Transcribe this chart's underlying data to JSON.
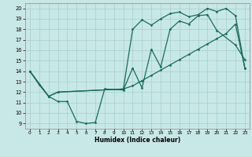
{
  "xlabel": "Humidex (Indice chaleur)",
  "bg_color": "#c8e8e8",
  "grid_color": "#a8cccc",
  "line_color": "#1a6b5a",
  "xlim": [
    -0.5,
    23.5
  ],
  "ylim": [
    8.5,
    20.5
  ],
  "xticks": [
    0,
    1,
    2,
    3,
    4,
    5,
    6,
    7,
    8,
    9,
    10,
    11,
    12,
    13,
    14,
    15,
    16,
    17,
    18,
    19,
    20,
    21,
    22,
    23
  ],
  "yticks": [
    9,
    10,
    11,
    12,
    13,
    14,
    15,
    16,
    17,
    18,
    19,
    20
  ],
  "line1_x": [
    0,
    1,
    2,
    3,
    4,
    5,
    6,
    7,
    8,
    10,
    11,
    12,
    13,
    14,
    15,
    16,
    17,
    18,
    19,
    20,
    22,
    23
  ],
  "line1_y": [
    14.0,
    12.7,
    11.6,
    11.1,
    11.1,
    9.2,
    9.0,
    9.1,
    12.3,
    12.2,
    14.3,
    12.4,
    16.1,
    14.4,
    18.0,
    18.8,
    18.5,
    19.3,
    19.4,
    17.9,
    16.5,
    15.1
  ],
  "line2_x": [
    0,
    2,
    3,
    10,
    11,
    12,
    13,
    14,
    15,
    16,
    17,
    18,
    19,
    20,
    21,
    22,
    23
  ],
  "line2_y": [
    14.0,
    11.6,
    12.0,
    12.3,
    18.0,
    18.9,
    18.4,
    19.0,
    19.5,
    19.65,
    19.2,
    19.4,
    20.0,
    19.7,
    20.0,
    19.3,
    14.3
  ],
  "line3_x": [
    0,
    2,
    3,
    10,
    11,
    12,
    13,
    14,
    15,
    16,
    17,
    18,
    19,
    20,
    21,
    22,
    23
  ],
  "line3_y": [
    14.0,
    11.6,
    12.0,
    12.3,
    12.6,
    13.1,
    13.6,
    14.1,
    14.6,
    15.1,
    15.6,
    16.1,
    16.6,
    17.1,
    17.6,
    18.5,
    14.3
  ]
}
